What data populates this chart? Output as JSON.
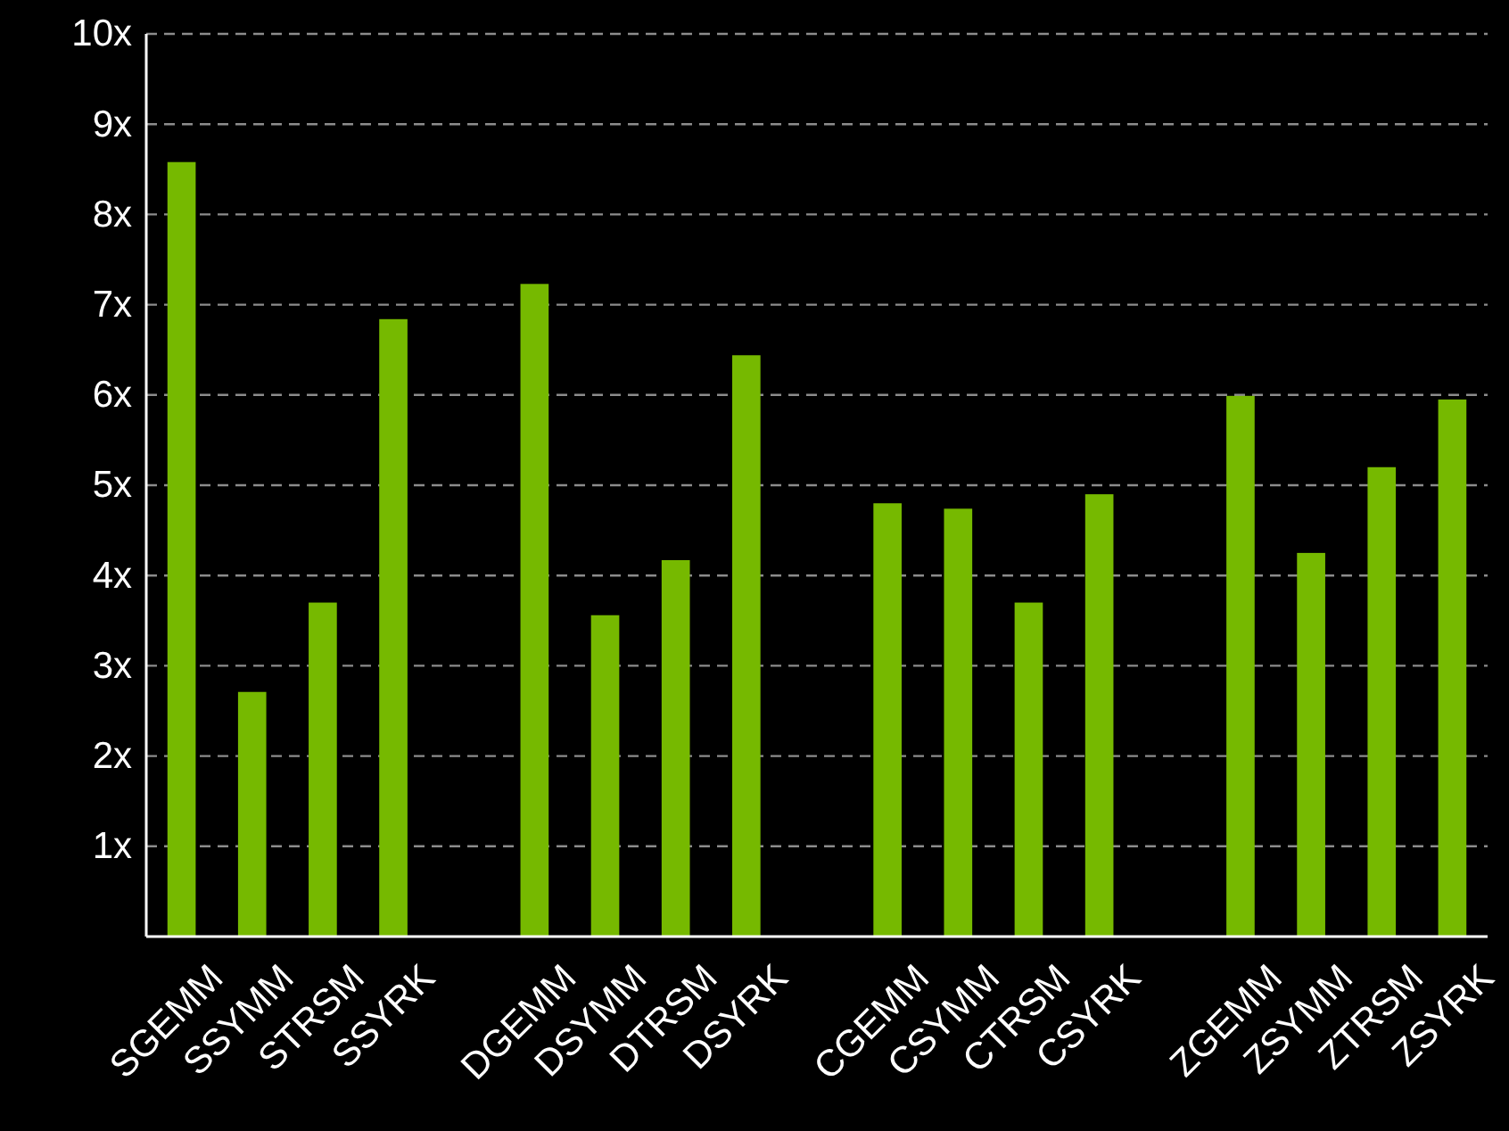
{
  "chart_data": {
    "type": "bar",
    "categories": [
      "SGEMM",
      "SSYMM",
      "STRSM",
      "SSYRK",
      null,
      "DGEMM",
      "DSYMM",
      "DTRSM",
      "DSYRK",
      null,
      "CGEMM",
      "CSYMM",
      "CTRSM",
      "CSYRK",
      null,
      "ZGEMM",
      "ZSYMM",
      "ZTRSM",
      "ZSYRK"
    ],
    "values": [
      8.58,
      2.71,
      3.7,
      6.84,
      null,
      7.23,
      3.56,
      4.17,
      6.44,
      null,
      4.8,
      4.74,
      3.7,
      4.9,
      null,
      5.99,
      4.25,
      5.2,
      5.95
    ],
    "color": "#76b900",
    "ylim": [
      0,
      10
    ],
    "yticks": [
      {
        "value": 1,
        "label": "1x"
      },
      {
        "value": 2,
        "label": "2x"
      },
      {
        "value": 3,
        "label": "3x"
      },
      {
        "value": 4,
        "label": "4x"
      },
      {
        "value": 5,
        "label": "5x"
      },
      {
        "value": 6,
        "label": "6x"
      },
      {
        "value": 7,
        "label": "7x"
      },
      {
        "value": 8,
        "label": "8x"
      },
      {
        "value": 9,
        "label": "9x"
      },
      {
        "value": 10,
        "label": "10x"
      }
    ],
    "grid": "y"
  }
}
